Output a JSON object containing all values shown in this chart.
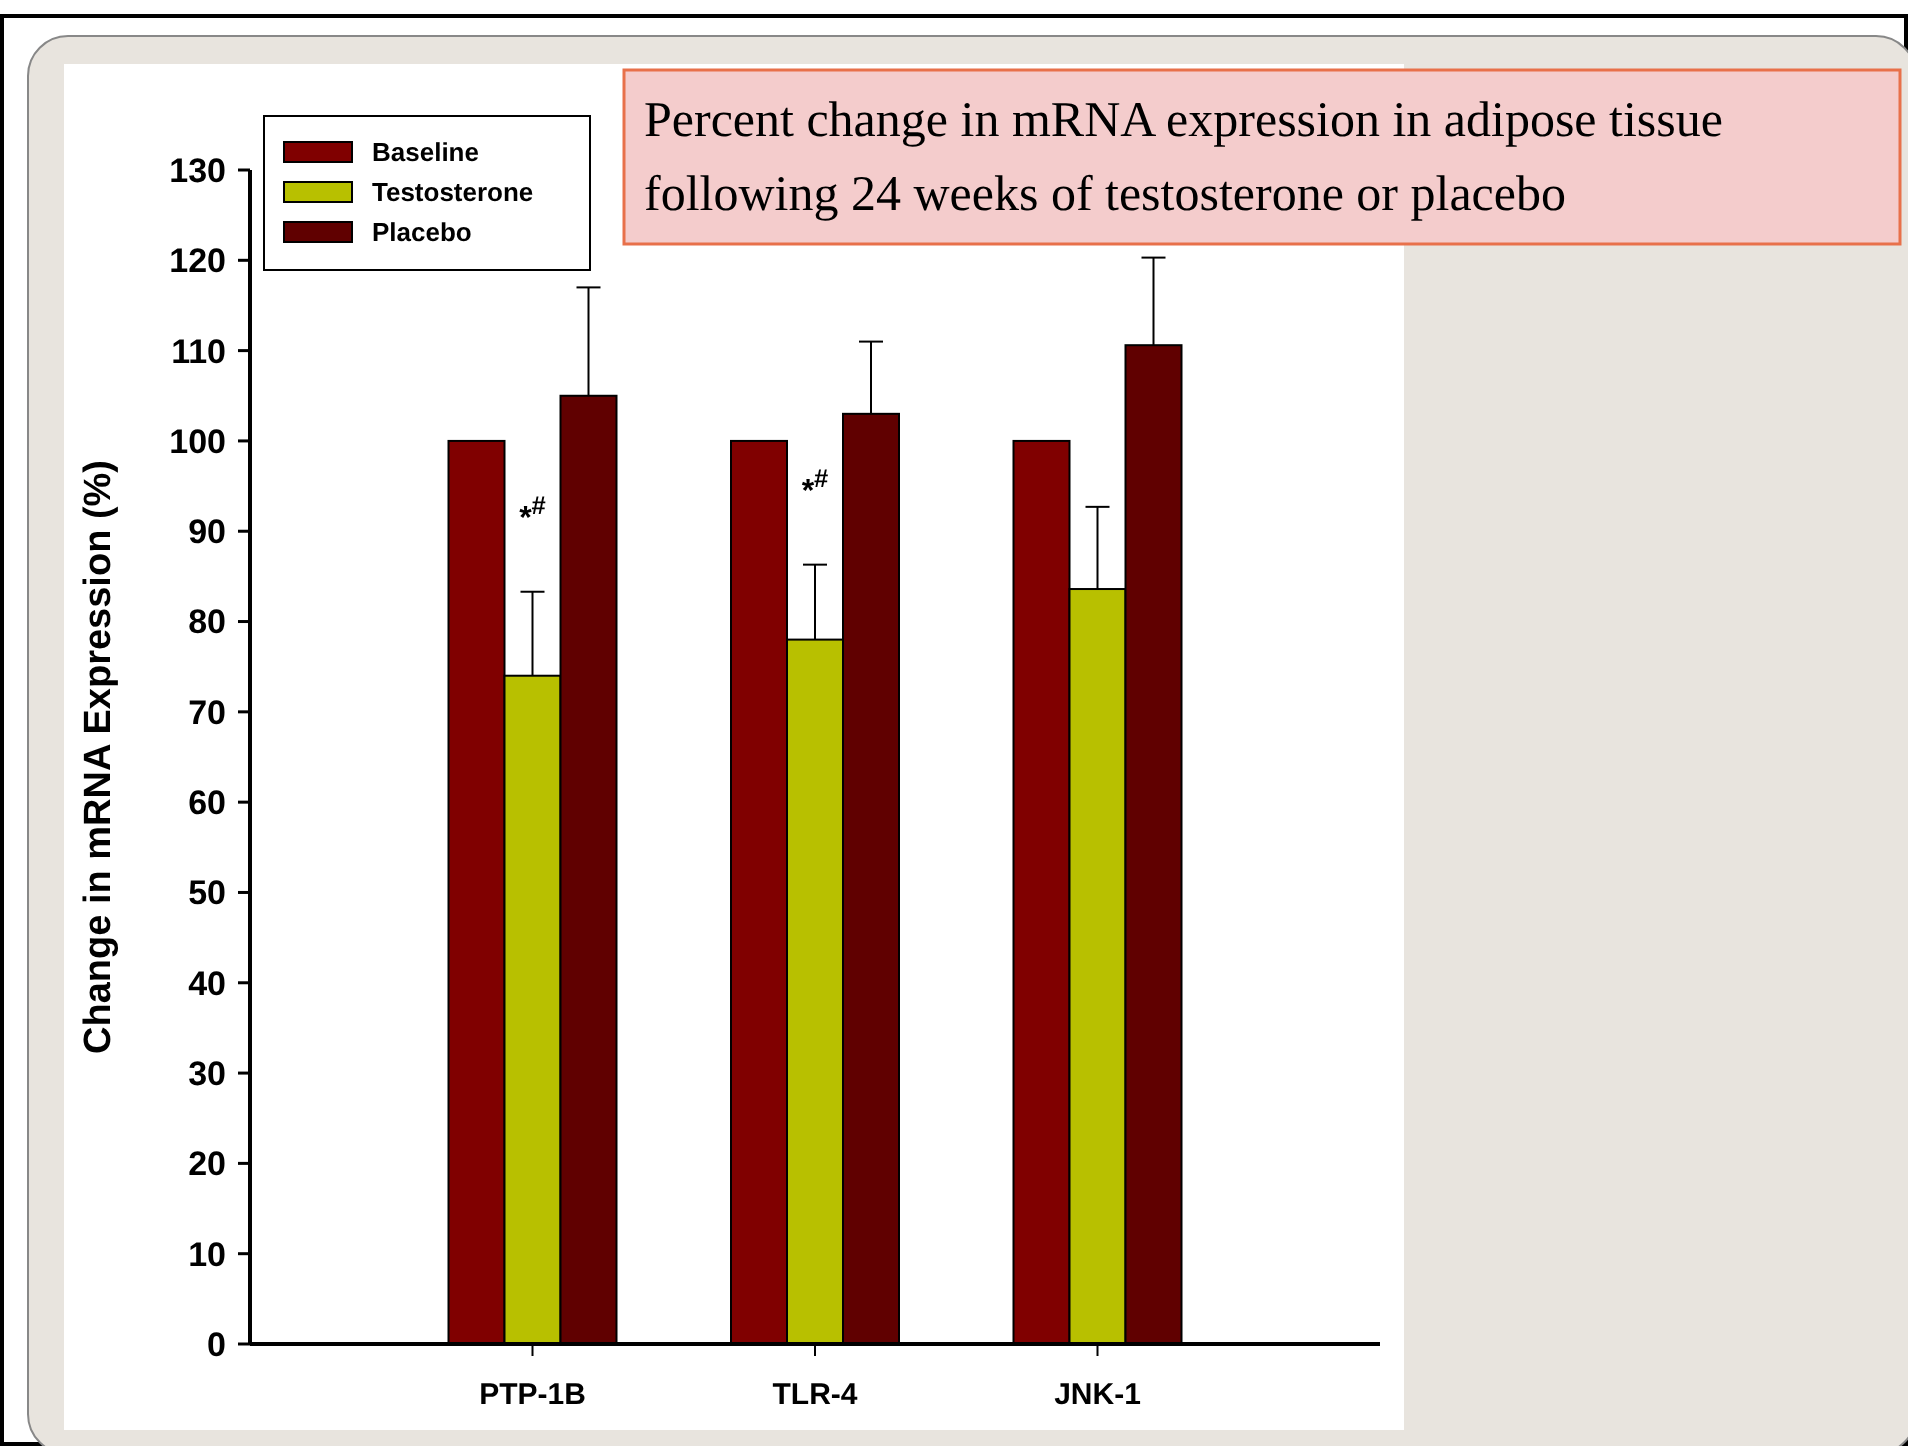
{
  "chart_data": {
    "type": "bar",
    "title": "Percent change in mRNA expression in adipose tissue following 24 weeks of testosterone or placebo",
    "ylabel": "Change in mRNA Expression (%)",
    "categories": [
      "PTP-1B",
      "TLR-4",
      "JNK-1"
    ],
    "series": [
      {
        "name": "Baseline",
        "color": "#800000",
        "values": [
          100,
          100,
          100
        ]
      },
      {
        "name": "Testosterone",
        "color": "#b8c000",
        "values": [
          74,
          78,
          83.6
        ],
        "errors": [
          [
            74,
            83.3
          ],
          [
            78,
            86.3
          ],
          [
            83.6,
            92.7
          ]
        ]
      },
      {
        "name": "Placebo",
        "color": "#600000",
        "values": [
          105,
          103,
          110.6
        ],
        "errors": [
          [
            105,
            117
          ],
          [
            103,
            111
          ],
          [
            110.6,
            120.3
          ]
        ]
      }
    ],
    "annotations": [
      {
        "text": "*$^{#}$",
        "x": "PTP-1B",
        "y": 83.3
      },
      {
        "text": "*$^{#}$",
        "x": "TLR-4",
        "y": 86.3
      }
    ],
    "ylim": [
      0,
      130
    ],
    "yticks": [
      0,
      10,
      20,
      30,
      40,
      50,
      60,
      70,
      80,
      90,
      100,
      110,
      120,
      130
    ],
    "legend": "top left",
    "grid": false
  }
}
